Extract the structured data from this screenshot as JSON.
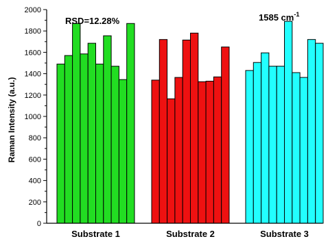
{
  "chart_data": {
    "type": "bar",
    "ylabel": "Raman Intensity (a.u.)",
    "ylim": [
      0,
      2000
    ],
    "yticks": [
      0,
      200,
      400,
      600,
      800,
      1000,
      1200,
      1400,
      1600,
      1800,
      2000
    ],
    "grid": false,
    "annotations": {
      "rsd": "RSD=12.28%",
      "peak": "1585 cm",
      "peak_sup": "-1"
    },
    "groups": [
      {
        "label": "Substrate 1",
        "color": "#22dd22",
        "values": [
          1490,
          1570,
          1870,
          1585,
          1685,
          1490,
          1755,
          1470,
          1345,
          1870
        ]
      },
      {
        "label": "Substrate 2",
        "color": "#ee1111",
        "values": [
          1340,
          1720,
          1165,
          1365,
          1715,
          1780,
          1325,
          1330,
          1370,
          1650
        ]
      },
      {
        "label": "Substrate 3",
        "color": "#22ffff",
        "values": [
          1430,
          1505,
          1595,
          1470,
          1470,
          1890,
          1410,
          1365,
          1720,
          1685
        ]
      }
    ]
  }
}
